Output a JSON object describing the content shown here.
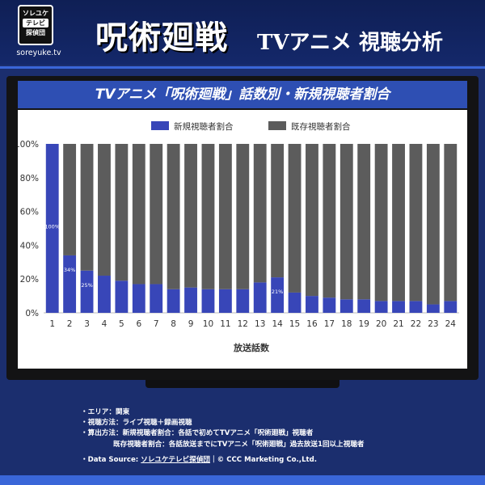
{
  "header": {
    "logo_top": "ソレユケ",
    "logo_mid": "テレビ",
    "logo_bottom": "探偵団",
    "logo_site": "soreyuke.tv",
    "main_title": "呪術廻戦",
    "sub_title": "TVアニメ 視聴分析"
  },
  "chart_title": "TVアニメ「呪術廻戦」話数別・新規視聴者割合",
  "chart_data": {
    "type": "bar",
    "stacked": true,
    "percent": true,
    "categories": [
      "1",
      "2",
      "3",
      "4",
      "5",
      "6",
      "7",
      "8",
      "9",
      "10",
      "11",
      "12",
      "13",
      "14",
      "15",
      "16",
      "17",
      "18",
      "19",
      "20",
      "21",
      "22",
      "23",
      "24"
    ],
    "series": [
      {
        "name": "新規視聴者割合",
        "color": "#3846b8",
        "values": [
          100,
          34,
          25,
          22,
          19,
          17,
          17,
          14,
          15,
          14,
          14,
          14,
          18,
          21,
          12,
          10,
          9,
          8,
          8,
          7,
          7,
          7,
          5,
          7
        ]
      },
      {
        "name": "既存視聴者割合",
        "color": "#5c5c5c",
        "values": [
          0,
          66,
          75,
          78,
          81,
          83,
          83,
          86,
          85,
          86,
          86,
          86,
          82,
          79,
          88,
          90,
          91,
          92,
          92,
          93,
          93,
          93,
          95,
          93
        ]
      }
    ],
    "data_labels": [
      {
        "index": 0,
        "text": "100%"
      },
      {
        "index": 1,
        "text": "34%"
      },
      {
        "index": 2,
        "text": "25%"
      },
      {
        "index": 13,
        "text": "21%"
      }
    ],
    "xlabel": "放送話数",
    "ylabel": "",
    "ylim": [
      0,
      100
    ],
    "yticks": [
      "0%",
      "20%",
      "40%",
      "60%",
      "80%",
      "100%"
    ],
    "legend_position": "top-center",
    "grid": false
  },
  "notes": {
    "area": "・エリア：関東",
    "method": "・視聴方法：ライブ視聴＋録画視聴",
    "calc1": "・算出方法：新規視聴者割合：各話で初めてTVアニメ「呪術廻戦」視聴者",
    "calc2": "既存視聴者割合：各話放送までにTVアニメ「呪術廻戦」過去放送1回以上視聴者",
    "source_prefix": "・Data Source: ",
    "source_link": "ソレユケテレビ探偵団",
    "source_suffix": "｜© CCC Marketing Co.,Ltd."
  }
}
